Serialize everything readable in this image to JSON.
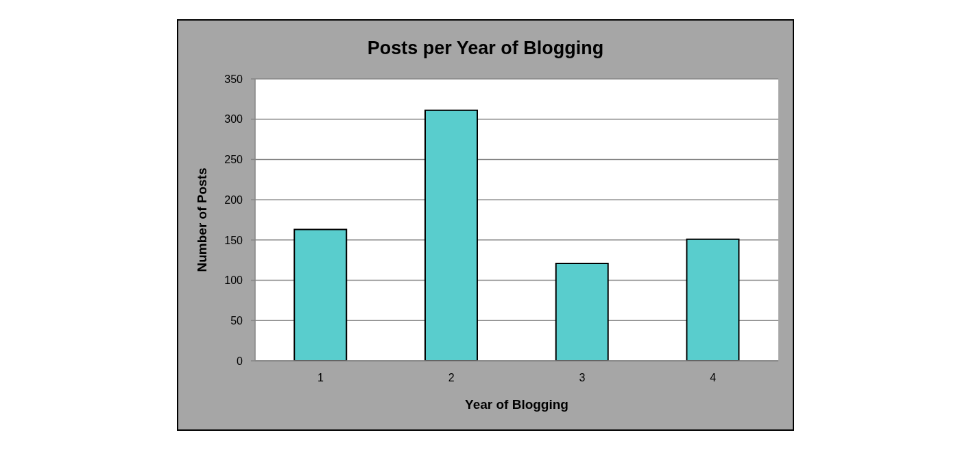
{
  "chart_data": {
    "type": "bar",
    "title": "Posts per Year of Blogging",
    "xlabel": "Year of Blogging",
    "ylabel": "Number of Posts",
    "categories": [
      "1",
      "2",
      "3",
      "4"
    ],
    "values": [
      163,
      311,
      121,
      151
    ],
    "color": "#59cdcd",
    "ylim": [
      0,
      350
    ],
    "yticks": [
      0,
      50,
      100,
      150,
      200,
      250,
      300,
      350
    ],
    "grid": "y"
  }
}
